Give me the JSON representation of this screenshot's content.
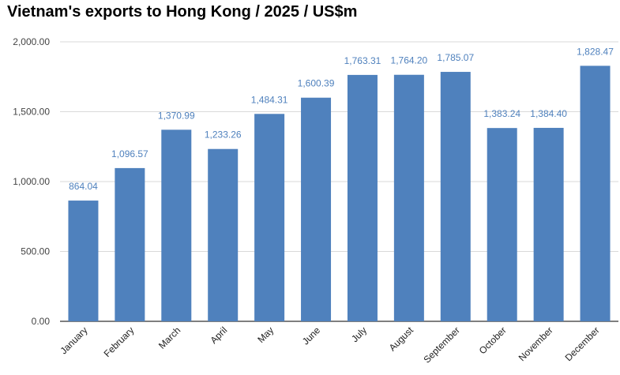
{
  "chart_data": {
    "type": "bar",
    "title": "Vietnam's exports to Hong Kong / 2025 / US$m",
    "xlabel": "",
    "ylabel": "",
    "categories": [
      "January",
      "February",
      "March",
      "April",
      "May",
      "June",
      "July",
      "August",
      "September",
      "October",
      "November",
      "December"
    ],
    "values": [
      864.04,
      1096.57,
      1370.99,
      1233.26,
      1484.31,
      1600.39,
      1763.31,
      1764.2,
      1785.07,
      1383.24,
      1384.4,
      1828.47
    ],
    "value_labels": [
      "864.04",
      "1,096.57",
      "1,370.99",
      "1,233.26",
      "1,484.31",
      "1,600.39",
      "1,763.31",
      "1,764.20",
      "1,785.07",
      "1,383.24",
      "1,384.40",
      "1,828.47"
    ],
    "ylim": [
      0,
      2000
    ],
    "yticks": [
      0,
      500,
      1000,
      1500,
      2000
    ],
    "ytick_labels": [
      "0.00",
      "500.00",
      "1,000.00",
      "1,500.00",
      "2,000.00"
    ],
    "grid": true,
    "legend": "none",
    "colors": {
      "bar": "#4f81bd",
      "data_label": "#4f81bd",
      "grid": "#d9d9d9",
      "axis": "#333333"
    }
  }
}
